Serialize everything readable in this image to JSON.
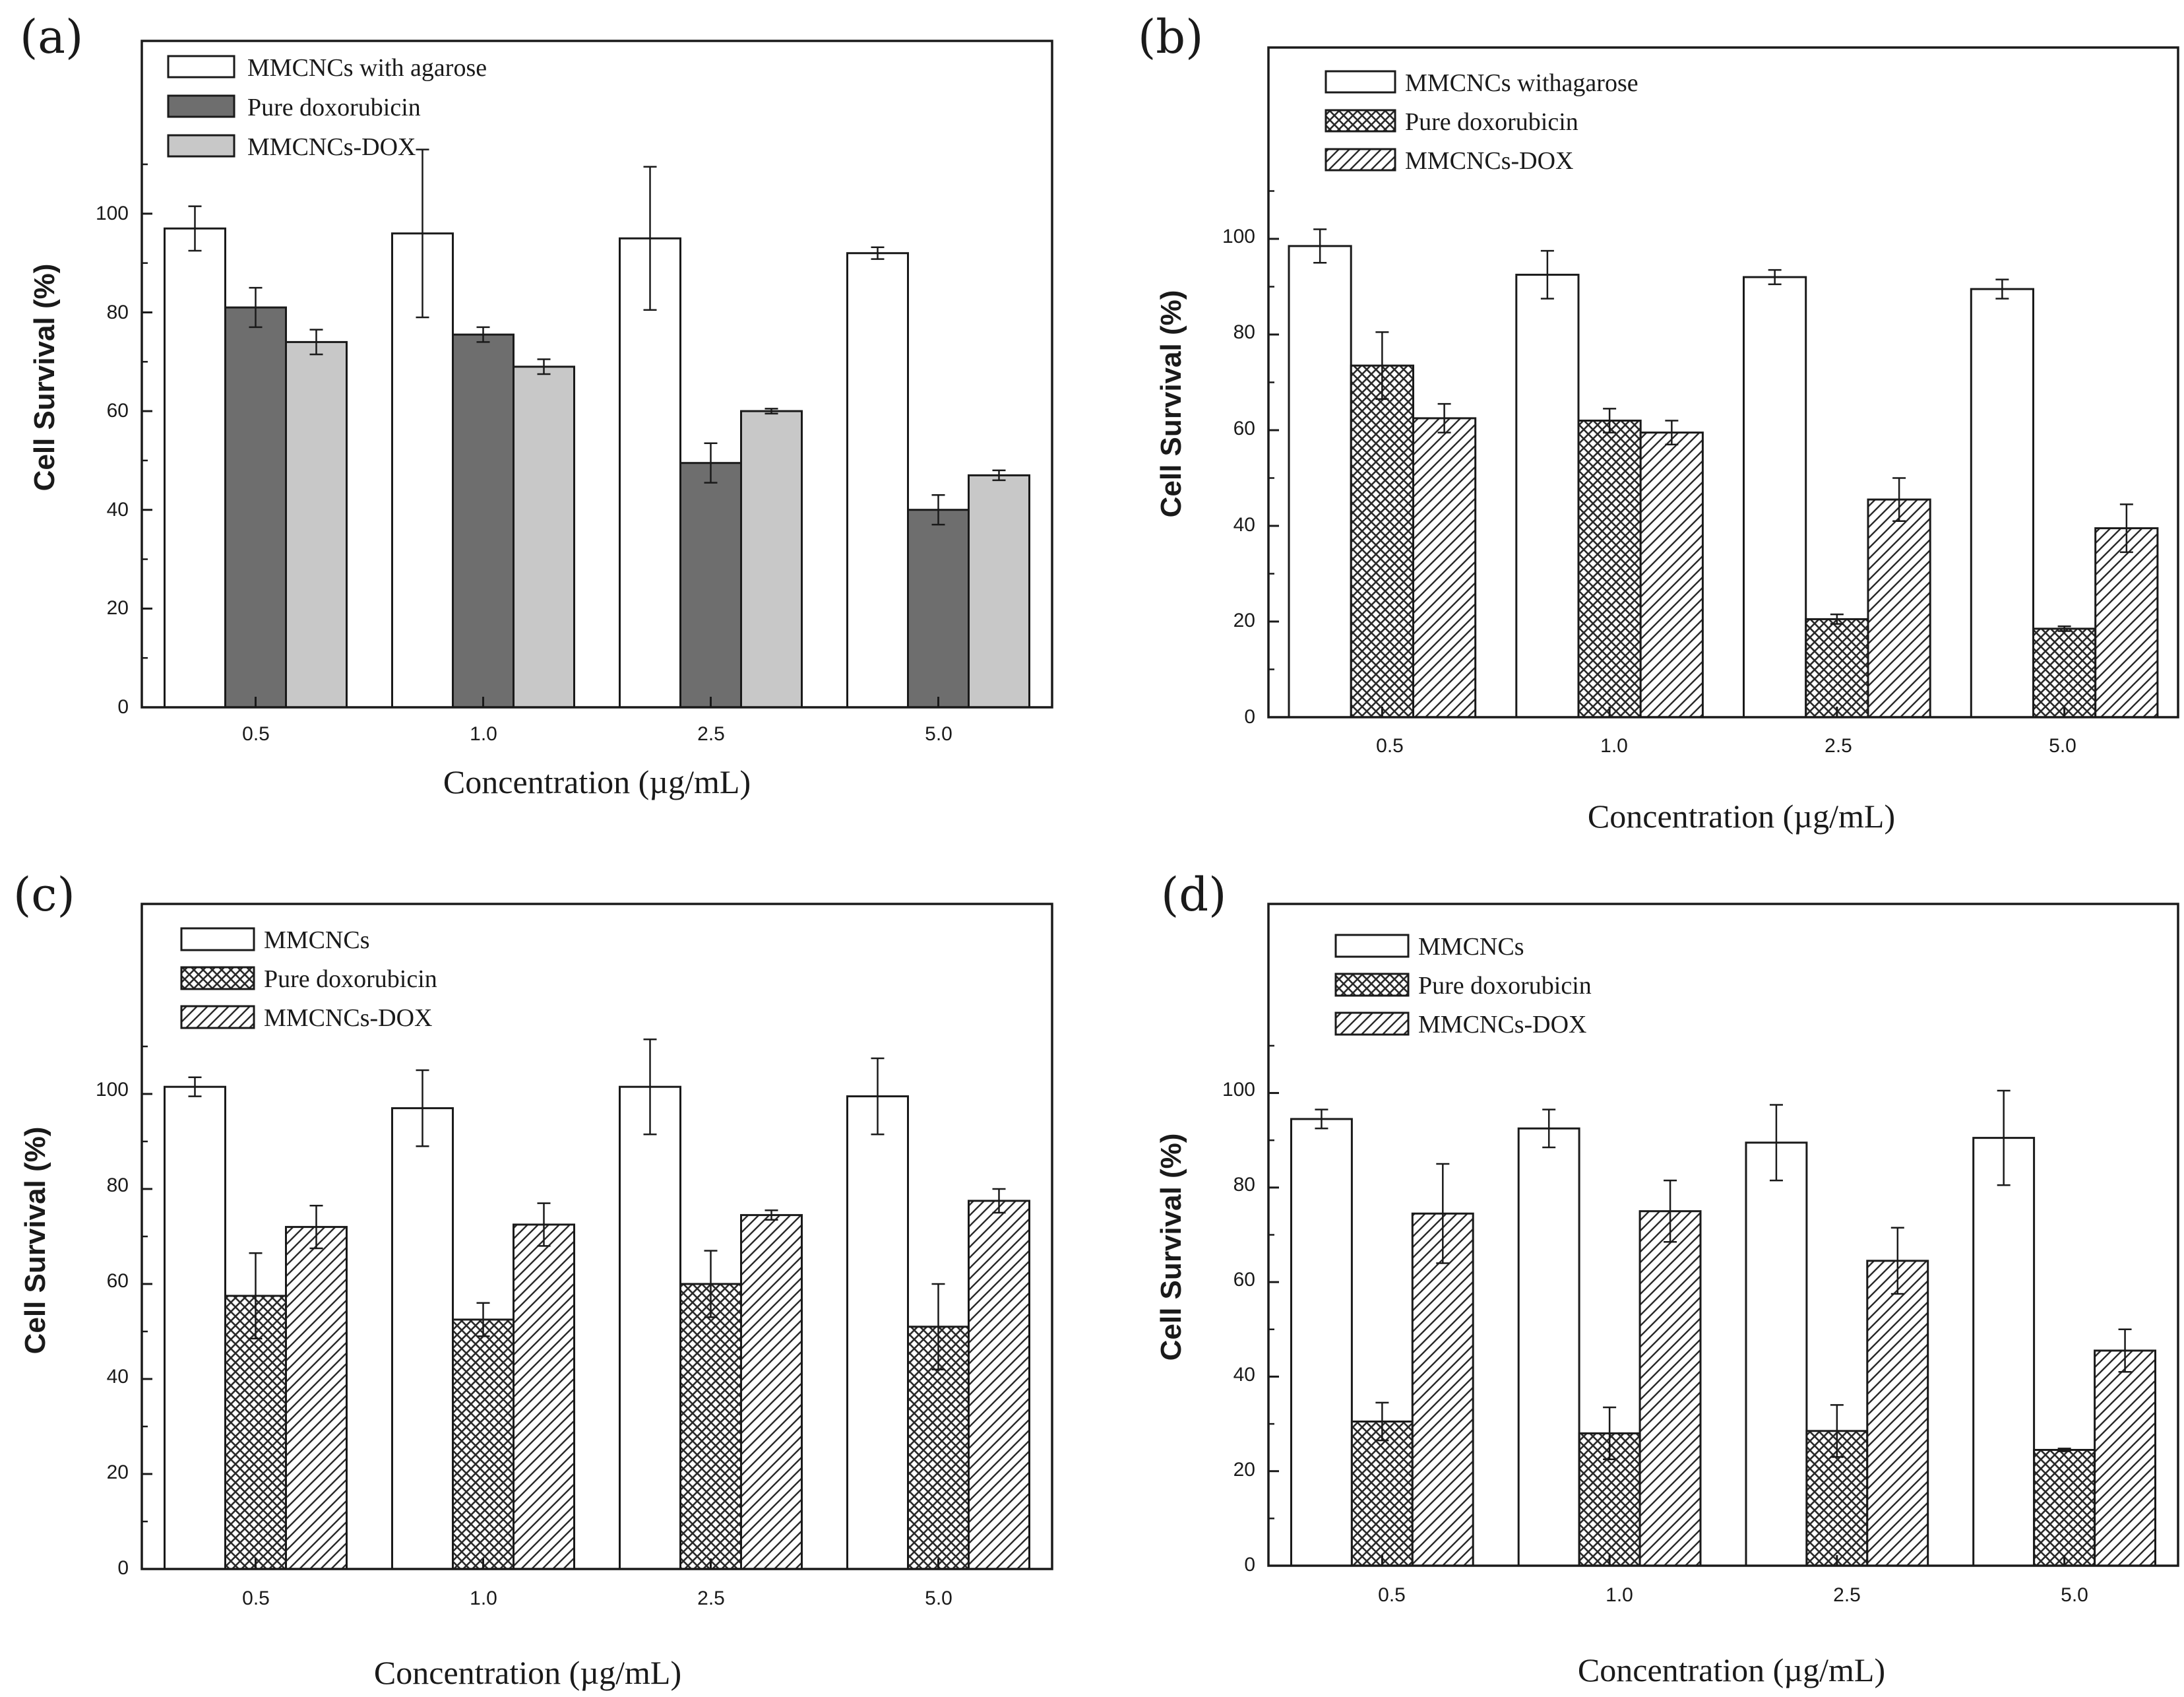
{
  "chart_data": [
    {
      "type": "bar",
      "panel_label": "(a)",
      "categories": [
        "0.5",
        "1.0",
        "2.5",
        "5.0"
      ],
      "series": [
        {
          "name": "MMCNCs with agarose",
          "fill": "white",
          "values": [
            97,
            96,
            95,
            92
          ],
          "errors": [
            4.5,
            17,
            14.5,
            1.2
          ]
        },
        {
          "name": "Pure doxorubicin",
          "fill": "dark",
          "values": [
            81,
            75.5,
            49.5,
            40
          ],
          "errors": [
            4,
            1.5,
            4,
            3
          ]
        },
        {
          "name": "MMCNCs-DOX",
          "fill": "light",
          "values": [
            74,
            69,
            60,
            47
          ],
          "errors": [
            2.5,
            1.5,
            0.5,
            1
          ]
        }
      ],
      "title": "",
      "xlabel": "Concentration (µg/mL)",
      "ylabel": "Cell Survival (%)",
      "yticks": [
        "0",
        "20",
        "40",
        "60",
        "80",
        "100"
      ],
      "ylim": [
        0,
        135
      ],
      "legend": "top-left"
    },
    {
      "type": "bar",
      "panel_label": "(b)",
      "categories": [
        "0.5",
        "1.0",
        "2.5",
        "5.0"
      ],
      "series": [
        {
          "name": "MMCNCs withagarose",
          "fill": "white",
          "values": [
            98.5,
            92.5,
            92,
            89.5
          ],
          "errors": [
            3.5,
            5,
            1.5,
            2
          ]
        },
        {
          "name": "Pure doxorubicin",
          "fill": "crosshatch",
          "values": [
            73.5,
            62,
            20.5,
            18.5
          ],
          "errors": [
            7,
            2.5,
            1,
            0.5
          ]
        },
        {
          "name": "MMCNCs-DOX",
          "fill": "diagonal",
          "values": [
            62.5,
            59.5,
            45.5,
            39.5
          ],
          "errors": [
            3,
            2.5,
            4.5,
            5
          ]
        }
      ],
      "title": "",
      "xlabel": "Concentration (µg/mL)",
      "ylabel": "Cell Survival (%)",
      "yticks": [
        "0",
        "20",
        "40",
        "60",
        "80",
        "100"
      ],
      "ylim": [
        0,
        140
      ],
      "legend": "top-left"
    },
    {
      "type": "bar",
      "panel_label": "(c)",
      "categories": [
        "0.5",
        "1.0",
        "2.5",
        "5.0"
      ],
      "series": [
        {
          "name": "MMCNCs",
          "fill": "white",
          "values": [
            101.5,
            97,
            101.5,
            99.5
          ],
          "errors": [
            2,
            8,
            10,
            8
          ]
        },
        {
          "name": "Pure doxorubicin",
          "fill": "crosshatch",
          "values": [
            57.5,
            52.5,
            60,
            51
          ],
          "errors": [
            9,
            3.5,
            7,
            9
          ]
        },
        {
          "name": "MMCNCs-DOX",
          "fill": "diagonal",
          "values": [
            72,
            72.5,
            74.5,
            77.5
          ],
          "errors": [
            4.5,
            4.5,
            1,
            2.5
          ]
        }
      ],
      "title": "",
      "xlabel": "Concentration (µg/mL)",
      "ylabel": "Cell Survival (%)",
      "yticks": [
        "0",
        "20",
        "40",
        "60",
        "80",
        "100"
      ],
      "ylim": [
        0,
        140
      ],
      "legend": "top-left"
    },
    {
      "type": "bar",
      "panel_label": "(d)",
      "categories": [
        "0.5",
        "1.0",
        "2.5",
        "5.0"
      ],
      "series": [
        {
          "name": "MMCNCs",
          "fill": "white",
          "values": [
            94.5,
            92.5,
            89.5,
            90.5
          ],
          "errors": [
            2,
            4,
            8,
            10
          ]
        },
        {
          "name": "Pure doxorubicin",
          "fill": "crosshatch",
          "values": [
            30.5,
            28,
            28.5,
            24.5
          ],
          "errors": [
            4,
            5.5,
            5.5,
            0.3
          ]
        },
        {
          "name": "MMCNCs-DOX",
          "fill": "diagonal",
          "values": [
            74.5,
            75,
            64.5,
            45.5
          ],
          "errors": [
            10.5,
            6.5,
            7,
            4.5
          ]
        }
      ],
      "title": "",
      "xlabel": "Concentration (µg/mL)",
      "ylabel": "Cell Survival (%)",
      "yticks": [
        "0",
        "20",
        "40",
        "60",
        "80",
        "100"
      ],
      "ylim": [
        0,
        140
      ],
      "legend": "top-left"
    }
  ],
  "colors": {
    "axis": "#1a1a1a",
    "white_bar": "#ffffff",
    "dark_bar": "#6e6e6e",
    "light_bar": "#c8c8c8",
    "pattern_line": "#2a2a2a",
    "pattern_bg": "#ffffff"
  }
}
